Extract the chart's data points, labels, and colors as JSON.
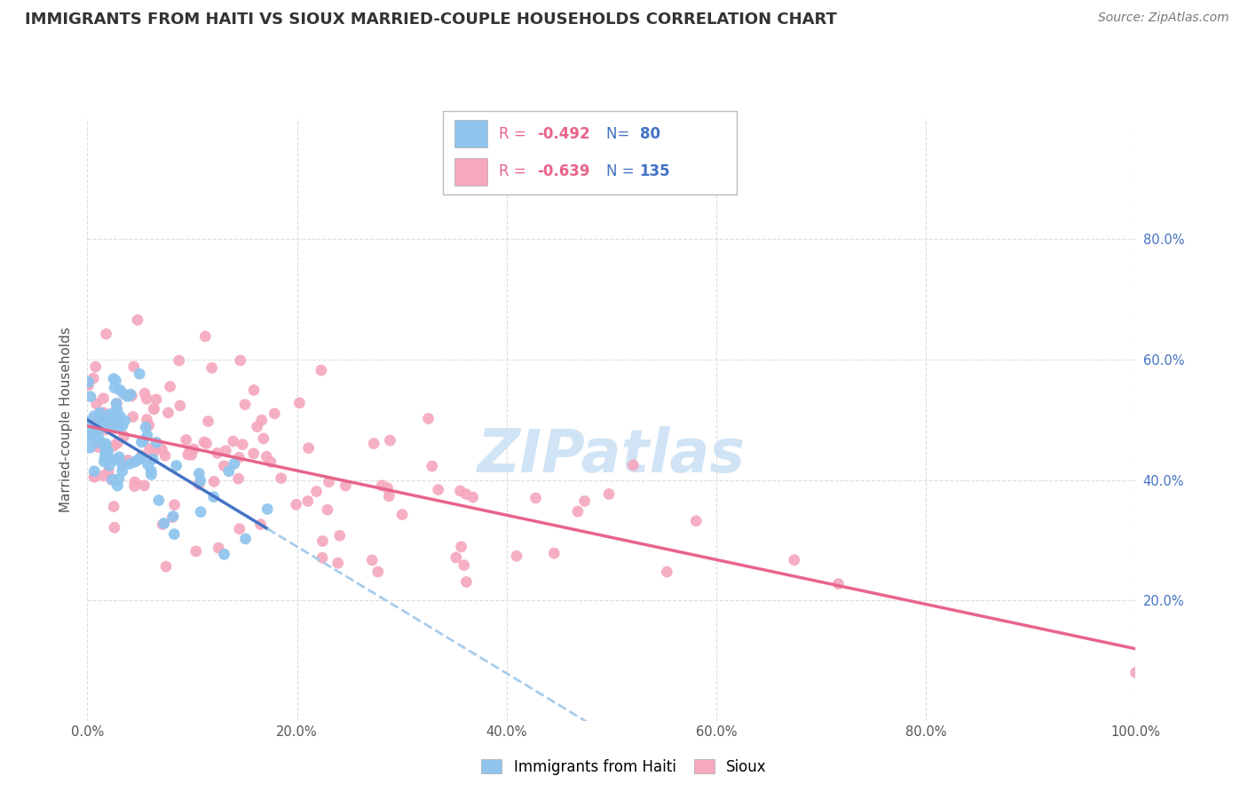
{
  "title": "IMMIGRANTS FROM HAITI VS SIOUX MARRIED-COUPLE HOUSEHOLDS CORRELATION CHART",
  "source": "Source: ZipAtlas.com",
  "ylabel": "Married-couple Households",
  "xlim": [
    0.0,
    1.0
  ],
  "ylim": [
    0.0,
    1.0
  ],
  "haiti_R": -0.492,
  "haiti_N": 80,
  "sioux_R": -0.639,
  "sioux_N": 135,
  "haiti_color": "#8EC4ED",
  "sioux_color": "#F5A8BE",
  "haiti_line_color": "#4472C4",
  "sioux_line_color": "#E8648A",
  "dashed_line_color": "#A8CCEC",
  "background_color": "#FFFFFF",
  "watermark_color": "#D0E4F5",
  "legend_R_color": "#E8648A",
  "legend_N_color": "#4472C4",
  "title_fontsize": 13,
  "axis_label_fontsize": 11,
  "tick_fontsize": 10.5,
  "source_fontsize": 10
}
